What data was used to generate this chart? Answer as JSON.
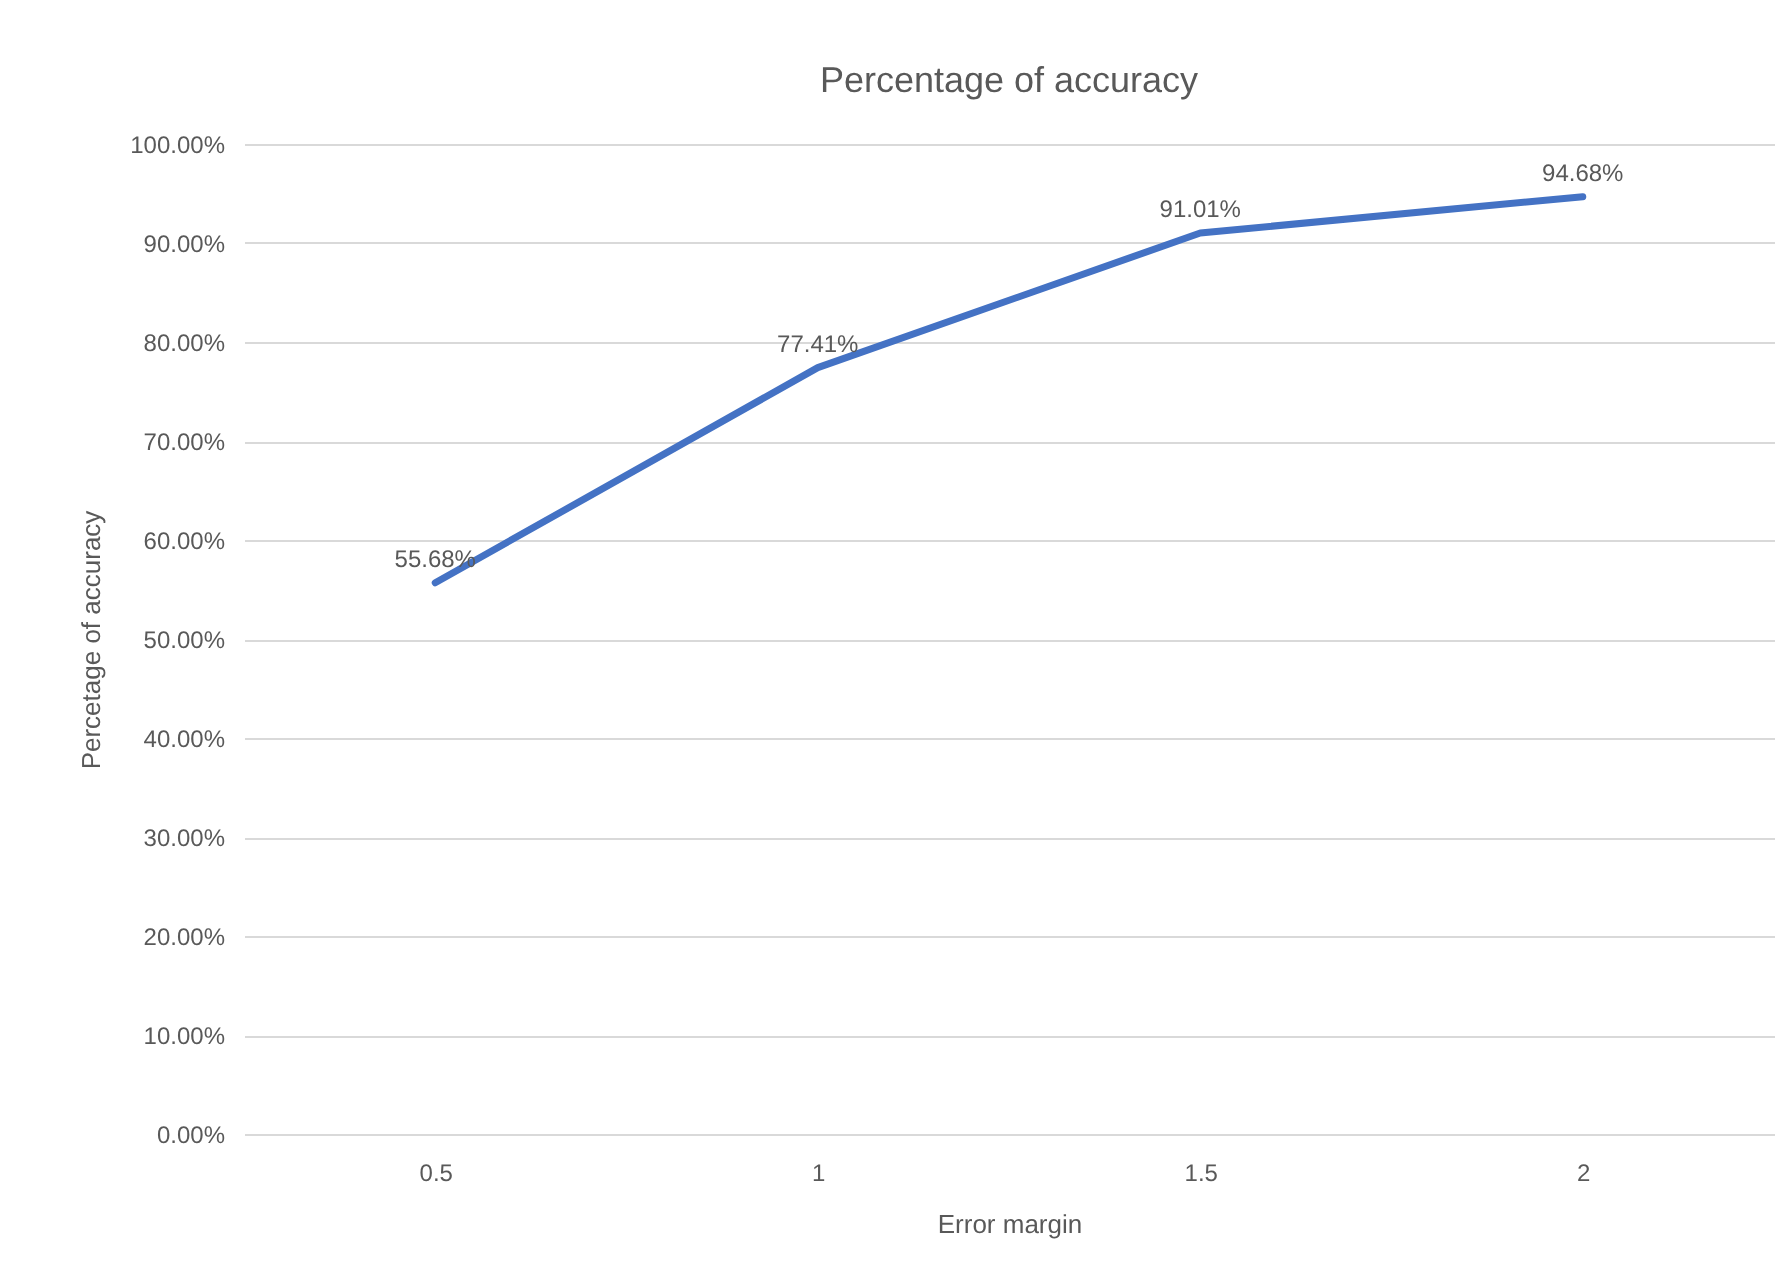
{
  "chart_data": {
    "type": "line",
    "title": "Percentage of accuracy",
    "xlabel": "Error margin",
    "ylabel": "Percetage of accuracy",
    "categories": [
      "0.5",
      "1",
      "1.5",
      "2"
    ],
    "values": [
      55.68,
      77.41,
      91.01,
      94.68
    ],
    "value_labels": [
      "55.68%",
      "77.41%",
      "91.01%",
      "94.68%"
    ],
    "color": "#4472c4",
    "ylim": [
      0,
      100
    ],
    "yticks": [
      {
        "value": 0,
        "label": "0.00%"
      },
      {
        "value": 10,
        "label": "10.00%"
      },
      {
        "value": 20,
        "label": "20.00%"
      },
      {
        "value": 30,
        "label": "30.00%"
      },
      {
        "value": 40,
        "label": "40.00%"
      },
      {
        "value": 50,
        "label": "50.00%"
      },
      {
        "value": 60,
        "label": "60.00%"
      },
      {
        "value": 70,
        "label": "70.00%"
      },
      {
        "value": 80,
        "label": "80.00%"
      },
      {
        "value": 90,
        "label": "90.00%"
      },
      {
        "value": 100,
        "label": "100.00%"
      }
    ],
    "grid": "y"
  }
}
